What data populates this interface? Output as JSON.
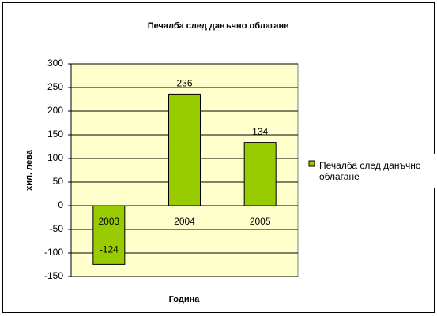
{
  "chart_data": {
    "type": "bar",
    "title": "Печалба след данъчно облагане",
    "categories": [
      "2003",
      "2004",
      "2005"
    ],
    "series": [
      {
        "name": "Печалба след данъчно облагане",
        "color": "#99cc00",
        "values": [
          -124,
          236,
          134
        ]
      }
    ],
    "x_label": "Година",
    "y_label": "хил. лева",
    "ylim": [
      -150,
      300
    ],
    "yticks": [
      -150,
      -100,
      -50,
      0,
      50,
      100,
      150,
      200,
      250,
      300
    ],
    "grid": true,
    "legend": "right",
    "plot_background": "#ffffcc"
  }
}
